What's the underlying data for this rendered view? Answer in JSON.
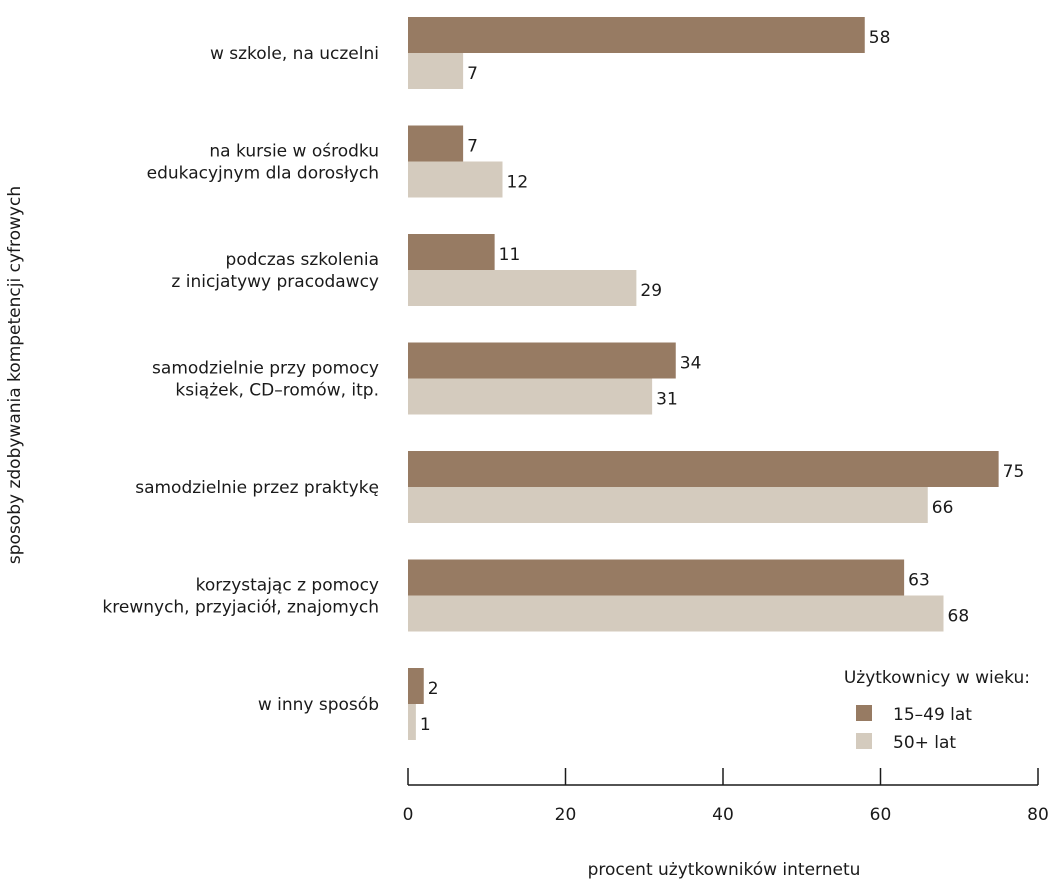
{
  "chart_data": {
    "type": "bar",
    "orientation": "horizontal",
    "categories": [
      [
        "w szkole, na uczelni"
      ],
      [
        "na kursie w ośrodku",
        "edukacyjnym dla dorosłych"
      ],
      [
        "podczas szkolenia",
        "z inicjatywy pracodawcy"
      ],
      [
        "samodzielnie przy pomocy",
        "książek, CD–romów, itp."
      ],
      [
        "samodzielnie przez praktykę"
      ],
      [
        "korzystając z pomocy",
        "krewnych, przyjaciół, znajomych"
      ],
      [
        "w inny sposób"
      ]
    ],
    "series": [
      {
        "name": "15–49 lat",
        "color": "#977b63",
        "values": [
          58,
          7,
          11,
          34,
          75,
          63,
          2
        ]
      },
      {
        "name": "50+ lat",
        "color": "#d4cbbe",
        "values": [
          7,
          12,
          29,
          31,
          66,
          68,
          1
        ]
      }
    ],
    "xlabel": "procent użytkowników internetu",
    "ylabel": "sposoby zdobywania kompetencji cyfrowych",
    "xlim": [
      0,
      80
    ],
    "xticks": [
      0,
      20,
      40,
      60,
      80
    ],
    "legend": {
      "title": "Użytkownicy w wieku:",
      "position": "bottom-right"
    },
    "grid": false
  }
}
